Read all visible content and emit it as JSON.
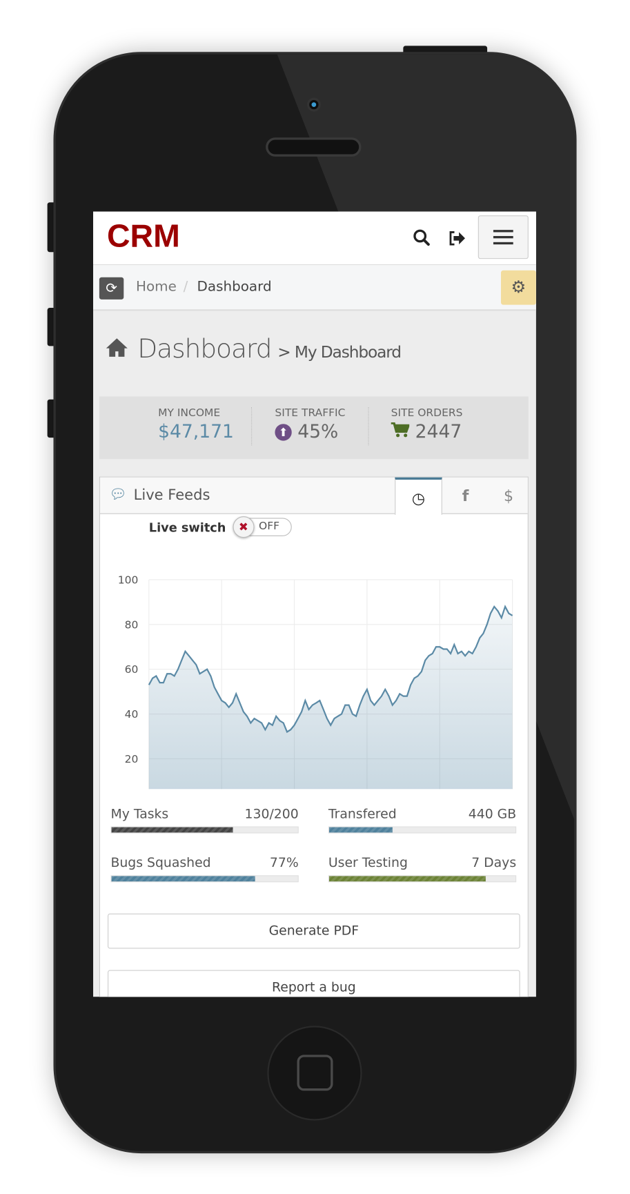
{
  "header": {
    "logo": "CRM",
    "search_icon": "search-icon",
    "logout_icon": "logout-icon",
    "menu_icon": "hamburger-icon"
  },
  "breadcrumb": {
    "items": [
      "Home",
      "Dashboard"
    ],
    "separator": "/"
  },
  "page": {
    "title": "Dashboard",
    "subtitle": "> My Dashboard"
  },
  "stats": [
    {
      "label": "MY INCOME",
      "value": "$47,171",
      "color": "#5b8aa6"
    },
    {
      "label": "SITE TRAFFIC",
      "value": "45%",
      "icon": "arrow-circle-up-icon",
      "color": "#7a4b8a"
    },
    {
      "label": "SITE ORDERS",
      "value": "2447",
      "icon": "cart-icon",
      "color": "#5a7a2a"
    }
  ],
  "panel": {
    "title": "Live Feeds",
    "tabs": [
      {
        "icon": "clock-icon",
        "label": "◷",
        "active": true
      },
      {
        "icon": "facebook-icon",
        "label": "f"
      },
      {
        "icon": "dollar-icon",
        "label": "$"
      }
    ]
  },
  "live_switch": {
    "label": "Live switch",
    "state": "OFF"
  },
  "chart_data": {
    "type": "area",
    "xlim": [
      0,
      100
    ],
    "ylim": [
      0,
      100
    ],
    "xticks": [
      0,
      20,
      40,
      60,
      80,
      100
    ],
    "yticks": [
      0,
      20,
      40,
      60,
      80,
      100
    ],
    "grid": true,
    "color": "#5b8aa6",
    "y": [
      53,
      56,
      57,
      54,
      54,
      58,
      58,
      57,
      60,
      64,
      68,
      66,
      64,
      62,
      58,
      59,
      60,
      57,
      52,
      49,
      46,
      45,
      43,
      45,
      49,
      45,
      41,
      39,
      36,
      38,
      37,
      36,
      33,
      36,
      35,
      39,
      37,
      36,
      32,
      33,
      35,
      38,
      41,
      46,
      42,
      44,
      45,
      46,
      42,
      38,
      35,
      38,
      39,
      40,
      44,
      44,
      40,
      39,
      44,
      48,
      51,
      46,
      44,
      46,
      48,
      51,
      48,
      44,
      46,
      49,
      48,
      48,
      53,
      56,
      57,
      59,
      64,
      66,
      67,
      70,
      70,
      69,
      69,
      67,
      71,
      67,
      68,
      66,
      68,
      67,
      70,
      74,
      76,
      80,
      85,
      88,
      86,
      83,
      88,
      85,
      84
    ]
  },
  "progress": [
    {
      "label": "My Tasks",
      "value": "130/200",
      "percent": 65,
      "color": "#444444"
    },
    {
      "label": "Transfered",
      "value": "440 GB",
      "percent": 34,
      "color": "#4f819c"
    },
    {
      "label": "Bugs Squashed",
      "value": "77%",
      "percent": 77,
      "color": "#4f819c"
    },
    {
      "label": "User Testing",
      "value": "7 Days",
      "percent": 84,
      "color": "#6b8236"
    }
  ],
  "buttons": {
    "generate_pdf": "Generate PDF",
    "report_bug": "Report a bug"
  }
}
